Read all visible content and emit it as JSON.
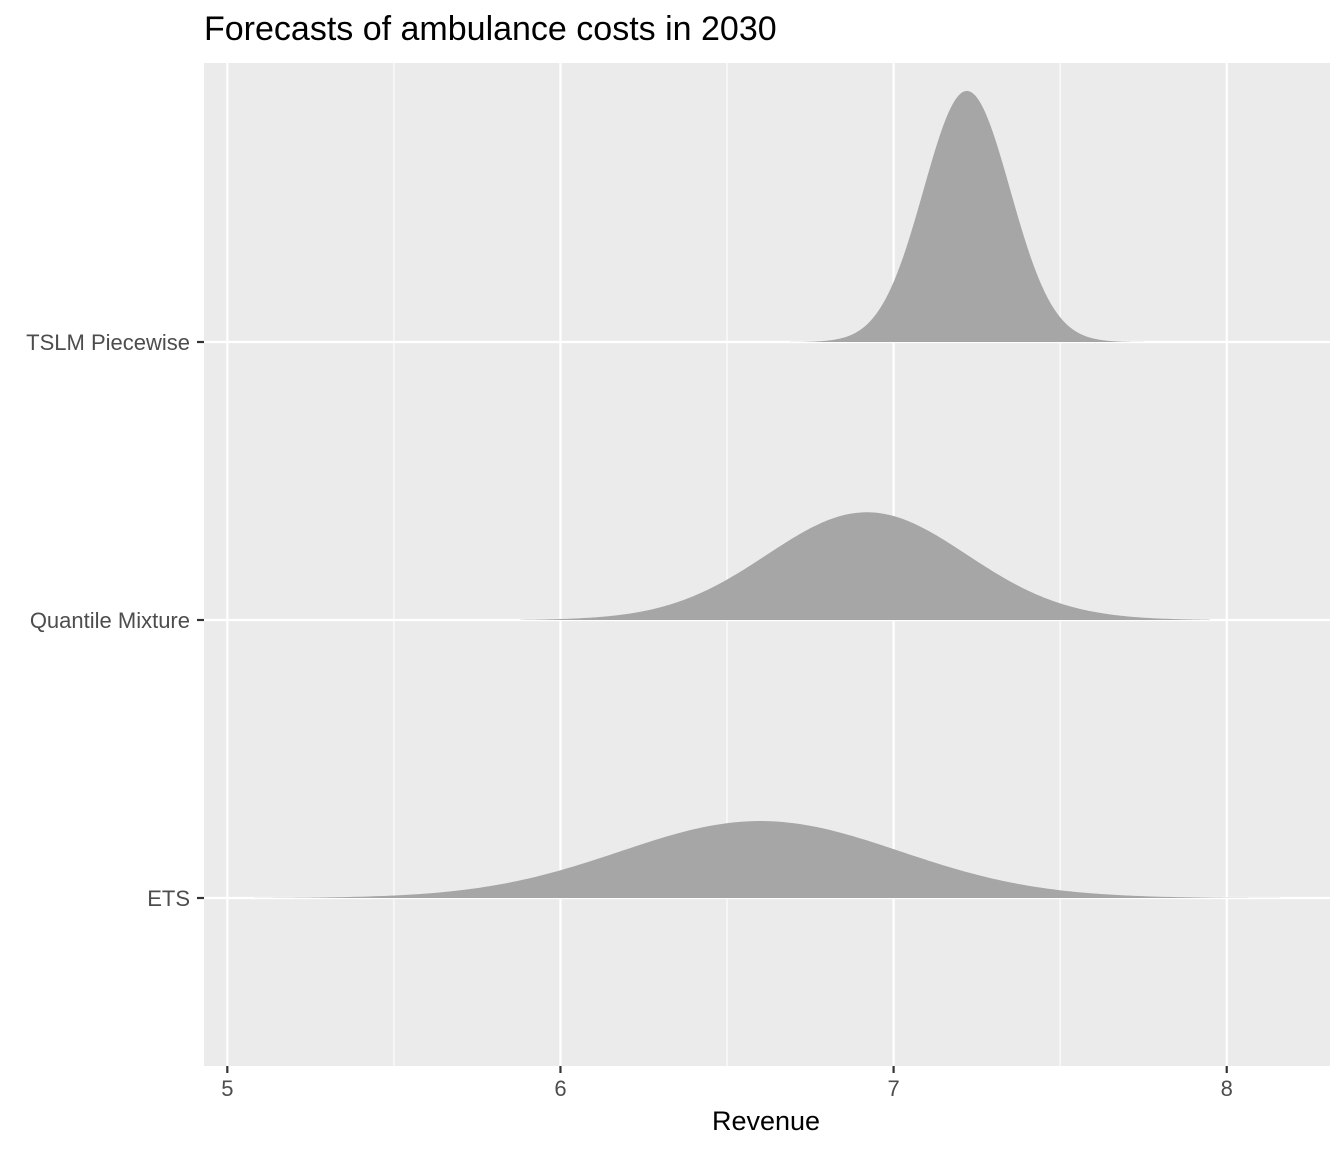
{
  "chart_data": {
    "type": "ridgeline",
    "title": "Forecasts of ambulance costs in 2030",
    "xlabel": "Revenue",
    "ylabel": "",
    "xlim": [
      4.93,
      8.31
    ],
    "x_ticks": [
      5,
      6,
      7,
      8
    ],
    "x_tick_labels": [
      "5",
      "6",
      "7",
      "8"
    ],
    "grid": true,
    "legend": "none",
    "fill_color": "#a6a6a6",
    "panel_background": "#ebebeb",
    "grid_color": "#ffffff",
    "series": [
      {
        "name": "ETS",
        "mean": 6.6,
        "sd": 0.42,
        "range": [
          5.08,
          8.16
        ],
        "peak_density": 0.95
      },
      {
        "name": "Quantile Mixture",
        "mean": 6.92,
        "sd": 0.3,
        "range": [
          5.88,
          7.95
        ],
        "peak_density": 1.33
      },
      {
        "name": "TSLM Piecewise",
        "mean": 7.22,
        "sd": 0.13,
        "range": [
          6.65,
          7.79
        ],
        "peak_density": 3.1
      }
    ]
  }
}
